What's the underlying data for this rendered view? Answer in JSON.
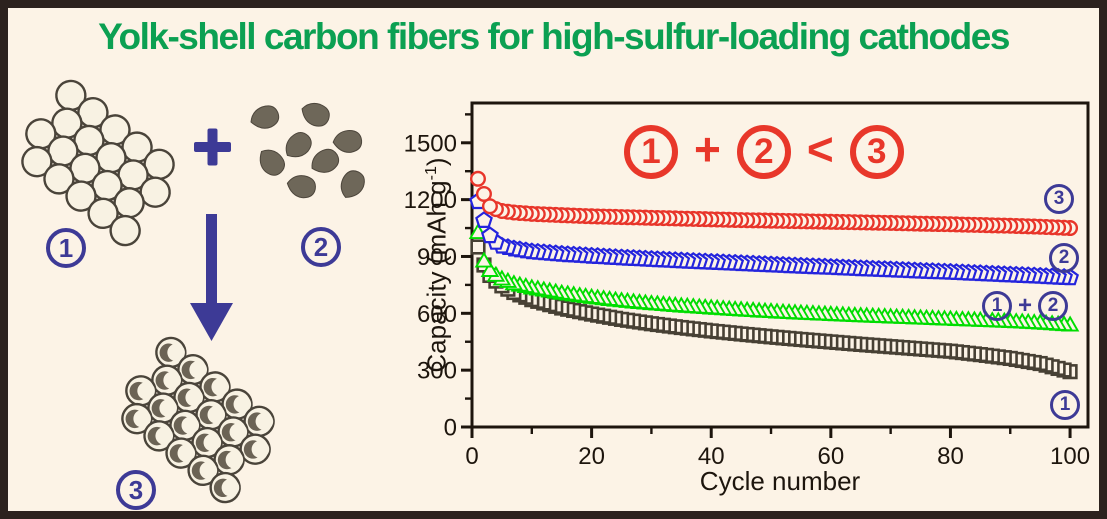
{
  "page": {
    "background": "#fcf3e6",
    "border_color": "#2c221e"
  },
  "title": {
    "text": "Yolk-shell carbon fibers for high-sulfur-loading cathodes",
    "color": "#0ba052"
  },
  "diagram": {
    "label_1": "1",
    "label_2": "2",
    "label_3": "3",
    "plus_icon": "plus",
    "arrow_icon": "arrow-down",
    "accent_color": "#3d3a96"
  },
  "annotation": {
    "term_1": "1",
    "plus": "+",
    "term_2": "2",
    "operator": "<",
    "term_3": "3",
    "color": "#e8372a"
  },
  "series_labels": {
    "s3": "3",
    "s2": "2",
    "combo_1": "1",
    "combo_plus": "+",
    "combo_2": "2",
    "s1": "1"
  },
  "chart_data": {
    "type": "scatter",
    "title": "",
    "xlabel": "Cycle number",
    "ylabel": "Capacity (mAh g⁻¹)",
    "ylabel_parts": {
      "prefix": "Capacity (mAh g",
      "sup": "-1",
      "suffix": ")"
    },
    "xlim": [
      0,
      103
    ],
    "ylim": [
      0,
      1710
    ],
    "x_ticks": [
      0,
      20,
      40,
      60,
      80,
      100
    ],
    "y_ticks": [
      0,
      300,
      600,
      900,
      1200,
      1500
    ],
    "x_minor_step": 10,
    "y_minor_step": 150,
    "grid": false,
    "legend_position": "right-inside",
    "n_cycles": 100,
    "axis_color": "#1d150d",
    "marker_fill": "#fcf3e6",
    "series": [
      {
        "name": "1",
        "legend": "1",
        "marker": "square",
        "color": "#474034",
        "x": [
          1,
          2,
          3,
          4,
          5,
          7,
          10,
          15,
          20,
          25,
          30,
          35,
          40,
          45,
          50,
          55,
          60,
          65,
          70,
          75,
          80,
          85,
          90,
          95,
          100
        ],
        "y": [
          950,
          855,
          800,
          770,
          745,
          710,
          672,
          628,
          596,
          568,
          545,
          525,
          507,
          491,
          476,
          462,
          449,
          436,
          424,
          412,
          400,
          382,
          362,
          335,
          292
        ]
      },
      {
        "name": "1+2",
        "legend": "1 + 2",
        "marker": "triangle",
        "color": "#00dd00",
        "x": [
          1,
          2,
          3,
          4,
          5,
          7,
          10,
          15,
          20,
          25,
          30,
          35,
          40,
          45,
          50,
          55,
          60,
          65,
          70,
          75,
          80,
          85,
          90,
          95,
          100
        ],
        "y": [
          1020,
          870,
          820,
          795,
          775,
          750,
          728,
          700,
          678,
          660,
          645,
          633,
          622,
          612,
          603,
          595,
          588,
          581,
          575,
          569,
          563,
          557,
          551,
          543,
          532
        ]
      },
      {
        "name": "2",
        "legend": "2",
        "marker": "pentagon",
        "color": "#2424dd",
        "x": [
          1,
          2,
          3,
          4,
          5,
          7,
          10,
          15,
          20,
          25,
          30,
          35,
          40,
          45,
          50,
          55,
          60,
          65,
          70,
          75,
          80,
          85,
          90,
          95,
          100
        ],
        "y": [
          1190,
          1090,
          1010,
          975,
          955,
          940,
          925,
          912,
          902,
          893,
          885,
          877,
          870,
          863,
          856,
          849,
          843,
          836,
          830,
          823,
          817,
          810,
          803,
          796,
          788
        ]
      },
      {
        "name": "3",
        "legend": "3",
        "marker": "circle",
        "color": "#e8352a",
        "x": [
          1,
          2,
          3,
          4,
          5,
          7,
          10,
          15,
          20,
          25,
          30,
          35,
          40,
          45,
          50,
          55,
          60,
          65,
          70,
          75,
          80,
          85,
          90,
          95,
          100
        ],
        "y": [
          1310,
          1230,
          1165,
          1150,
          1140,
          1132,
          1125,
          1118,
          1112,
          1108,
          1104,
          1100,
          1096,
          1092,
          1089,
          1086,
          1083,
          1080,
          1077,
          1073,
          1070,
          1066,
          1062,
          1057,
          1050
        ]
      }
    ]
  }
}
